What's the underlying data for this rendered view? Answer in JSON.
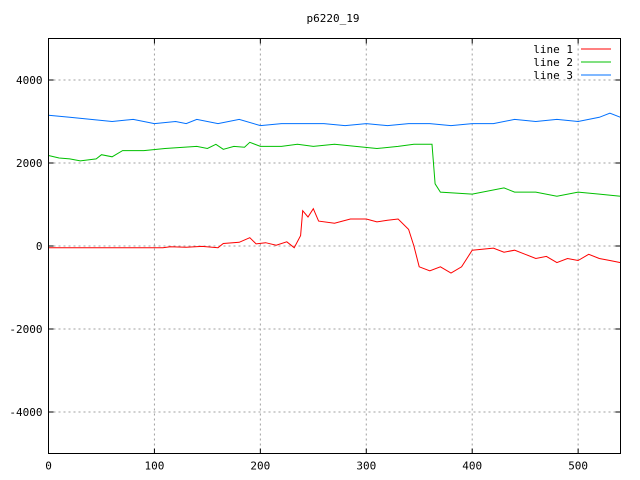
{
  "chart_data": {
    "type": "line",
    "title": "p6220_19",
    "xlim": [
      0,
      540
    ],
    "ylim": [
      -5000,
      5000
    ],
    "xticks": [
      0,
      100,
      200,
      300,
      400,
      500
    ],
    "yticks": [
      -4000,
      -2000,
      0,
      2000,
      4000
    ],
    "grid": true,
    "legend_position": "top-right",
    "series": [
      {
        "name": "line 1",
        "color": "#ff0000",
        "points": [
          [
            0,
            -40
          ],
          [
            50,
            -40
          ],
          [
            108,
            -40
          ],
          [
            115,
            -20
          ],
          [
            130,
            -30
          ],
          [
            145,
            -10
          ],
          [
            160,
            -40
          ],
          [
            165,
            60
          ],
          [
            180,
            90
          ],
          [
            190,
            200
          ],
          [
            196,
            50
          ],
          [
            205,
            80
          ],
          [
            215,
            20
          ],
          [
            225,
            100
          ],
          [
            232,
            -40
          ],
          [
            238,
            250
          ],
          [
            240,
            850
          ],
          [
            245,
            700
          ],
          [
            250,
            900
          ],
          [
            255,
            600
          ],
          [
            270,
            550
          ],
          [
            285,
            650
          ],
          [
            300,
            650
          ],
          [
            310,
            580
          ],
          [
            320,
            620
          ],
          [
            330,
            650
          ],
          [
            340,
            400
          ],
          [
            345,
            0
          ],
          [
            350,
            -500
          ],
          [
            360,
            -600
          ],
          [
            370,
            -500
          ],
          [
            380,
            -650
          ],
          [
            390,
            -500
          ],
          [
            395,
            -300
          ],
          [
            400,
            -100
          ],
          [
            420,
            -50
          ],
          [
            430,
            -150
          ],
          [
            440,
            -100
          ],
          [
            450,
            -200
          ],
          [
            460,
            -300
          ],
          [
            470,
            -250
          ],
          [
            480,
            -400
          ],
          [
            490,
            -300
          ],
          [
            500,
            -350
          ],
          [
            510,
            -200
          ],
          [
            520,
            -300
          ],
          [
            530,
            -350
          ],
          [
            540,
            -400
          ]
        ]
      },
      {
        "name": "line 2",
        "color": "#00c000",
        "points": [
          [
            0,
            2180
          ],
          [
            10,
            2120
          ],
          [
            20,
            2100
          ],
          [
            30,
            2050
          ],
          [
            45,
            2100
          ],
          [
            50,
            2200
          ],
          [
            60,
            2150
          ],
          [
            70,
            2300
          ],
          [
            90,
            2300
          ],
          [
            110,
            2350
          ],
          [
            140,
            2400
          ],
          [
            150,
            2350
          ],
          [
            158,
            2450
          ],
          [
            165,
            2330
          ],
          [
            175,
            2400
          ],
          [
            185,
            2380
          ],
          [
            190,
            2500
          ],
          [
            200,
            2400
          ],
          [
            220,
            2400
          ],
          [
            235,
            2450
          ],
          [
            250,
            2400
          ],
          [
            270,
            2450
          ],
          [
            290,
            2400
          ],
          [
            310,
            2350
          ],
          [
            330,
            2400
          ],
          [
            345,
            2450
          ],
          [
            362,
            2450
          ],
          [
            365,
            1500
          ],
          [
            370,
            1300
          ],
          [
            400,
            1250
          ],
          [
            430,
            1400
          ],
          [
            440,
            1300
          ],
          [
            460,
            1300
          ],
          [
            480,
            1200
          ],
          [
            500,
            1300
          ],
          [
            520,
            1250
          ],
          [
            540,
            1200
          ]
        ]
      },
      {
        "name": "line 3",
        "color": "#0070ff",
        "points": [
          [
            0,
            3150
          ],
          [
            20,
            3100
          ],
          [
            40,
            3050
          ],
          [
            60,
            3000
          ],
          [
            80,
            3050
          ],
          [
            100,
            2950
          ],
          [
            120,
            3000
          ],
          [
            130,
            2950
          ],
          [
            140,
            3050
          ],
          [
            160,
            2950
          ],
          [
            180,
            3050
          ],
          [
            200,
            2900
          ],
          [
            220,
            2950
          ],
          [
            240,
            2950
          ],
          [
            260,
            2950
          ],
          [
            280,
            2900
          ],
          [
            300,
            2950
          ],
          [
            320,
            2900
          ],
          [
            340,
            2950
          ],
          [
            360,
            2950
          ],
          [
            380,
            2900
          ],
          [
            400,
            2950
          ],
          [
            420,
            2950
          ],
          [
            440,
            3050
          ],
          [
            460,
            3000
          ],
          [
            480,
            3050
          ],
          [
            500,
            3000
          ],
          [
            510,
            3050
          ],
          [
            520,
            3100
          ],
          [
            530,
            3200
          ],
          [
            540,
            3100
          ]
        ]
      }
    ]
  }
}
